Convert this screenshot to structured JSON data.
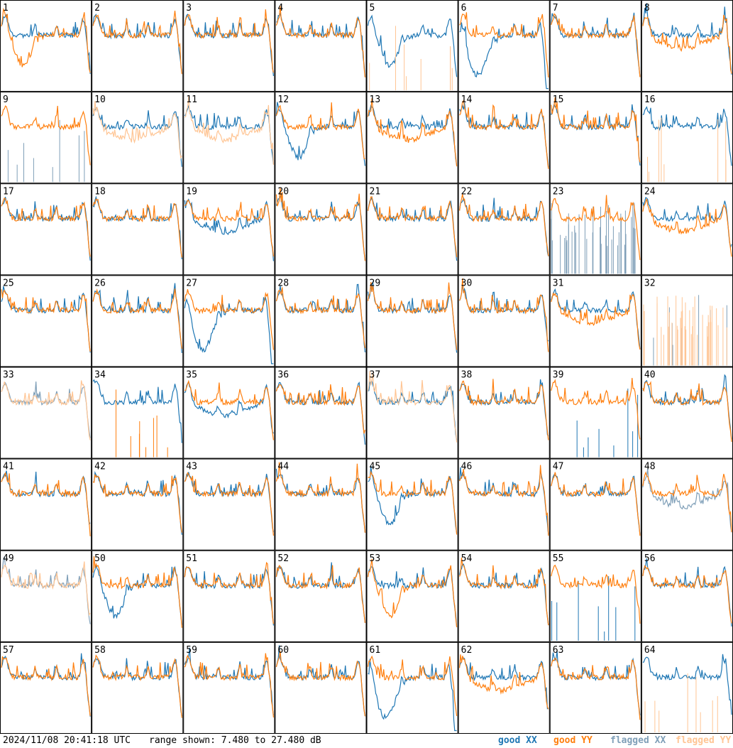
{
  "colors": {
    "good_xx": "#1f77b4",
    "good_yy": "#ff7f0e",
    "flagged_xx": "#7f9fb8",
    "flagged_yy": "#ffc594",
    "frame": "#000000"
  },
  "footer": {
    "timestamp": "2024/11/08 20:41:18 UTC",
    "range": "range shown: 7.480 to 27.480 dB",
    "legend_good_xx": "good XX",
    "legend_good_yy": "good YY",
    "legend_flagged_xx": "flagged XX",
    "legend_flagged_yy": "flagged YY"
  },
  "chart_data": {
    "type": "line",
    "grid": "8x8",
    "y_range_db": [
      7.48,
      27.48
    ],
    "series_types": [
      "good XX",
      "good YY",
      "flagged XX",
      "flagged YY"
    ],
    "tiles": [
      {
        "n": 1,
        "xx": "normal",
        "yy": "dip",
        "xx_flag": false,
        "yy_flag": false
      },
      {
        "n": 2,
        "xx": "normal",
        "yy": "normal",
        "xx_flag": false,
        "yy_flag": false
      },
      {
        "n": 3,
        "xx": "normal",
        "yy": "normal",
        "xx_flag": false,
        "yy_flag": false
      },
      {
        "n": 4,
        "xx": "normal",
        "yy": "normal",
        "xx_flag": false,
        "yy_flag": false
      },
      {
        "n": 5,
        "xx": "dip",
        "yy": "spikes",
        "xx_flag": false,
        "yy_flag": true
      },
      {
        "n": 6,
        "xx": "deep",
        "yy": "normal",
        "xx_flag": false,
        "yy_flag": false
      },
      {
        "n": 7,
        "xx": "normal",
        "yy": "normal",
        "xx_flag": false,
        "yy_flag": false
      },
      {
        "n": 8,
        "xx": "normal",
        "yy": "sag",
        "xx_flag": false,
        "yy_flag": false
      },
      {
        "n": 9,
        "xx": "spikes",
        "yy": "normal",
        "xx_flag": true,
        "yy_flag": false
      },
      {
        "n": 10,
        "xx": "normal",
        "yy": "sag",
        "xx_flag": false,
        "yy_flag": true
      },
      {
        "n": 11,
        "xx": "normal",
        "yy": "sag",
        "xx_flag": false,
        "yy_flag": true
      },
      {
        "n": 12,
        "xx": "dip",
        "yy": "normal",
        "xx_flag": false,
        "yy_flag": false
      },
      {
        "n": 13,
        "xx": "normal",
        "yy": "sag",
        "xx_flag": false,
        "yy_flag": false
      },
      {
        "n": 14,
        "xx": "normal",
        "yy": "normal",
        "xx_flag": false,
        "yy_flag": false
      },
      {
        "n": 15,
        "xx": "normal",
        "yy": "normal",
        "xx_flag": false,
        "yy_flag": false
      },
      {
        "n": 16,
        "xx": "normal",
        "yy": "spikes",
        "xx_flag": false,
        "yy_flag": true
      },
      {
        "n": 17,
        "xx": "normal",
        "yy": "normal",
        "xx_flag": false,
        "yy_flag": false
      },
      {
        "n": 18,
        "xx": "normal",
        "yy": "normal",
        "xx_flag": false,
        "yy_flag": false
      },
      {
        "n": 19,
        "xx": "sag",
        "yy": "normal",
        "xx_flag": false,
        "yy_flag": false
      },
      {
        "n": 20,
        "xx": "normal",
        "yy": "normal",
        "xx_flag": false,
        "yy_flag": false
      },
      {
        "n": 21,
        "xx": "normal",
        "yy": "normal",
        "xx_flag": false,
        "yy_flag": false
      },
      {
        "n": 22,
        "xx": "normal",
        "yy": "normal",
        "xx_flag": false,
        "yy_flag": false
      },
      {
        "n": 23,
        "xx": "noise",
        "yy": "normal",
        "xx_flag": true,
        "yy_flag": false
      },
      {
        "n": 24,
        "xx": "normal",
        "yy": "sag",
        "xx_flag": false,
        "yy_flag": false
      },
      {
        "n": 25,
        "xx": "normal",
        "yy": "normal",
        "xx_flag": false,
        "yy_flag": false
      },
      {
        "n": 26,
        "xx": "normal",
        "yy": "normal",
        "xx_flag": false,
        "yy_flag": false
      },
      {
        "n": 27,
        "xx": "deep",
        "yy": "normal",
        "xx_flag": false,
        "yy_flag": false
      },
      {
        "n": 28,
        "xx": "normal",
        "yy": "normal",
        "xx_flag": false,
        "yy_flag": false
      },
      {
        "n": 29,
        "xx": "normal",
        "yy": "normal",
        "xx_flag": false,
        "yy_flag": false
      },
      {
        "n": 30,
        "xx": "normal",
        "yy": "normal",
        "xx_flag": false,
        "yy_flag": false
      },
      {
        "n": 31,
        "xx": "normal",
        "yy": "sag",
        "xx_flag": false,
        "yy_flag": false
      },
      {
        "n": 32,
        "xx": "spikes",
        "yy": "noise",
        "xx_flag": true,
        "yy_flag": true
      },
      {
        "n": 33,
        "xx": "normal",
        "yy": "normal",
        "xx_flag": true,
        "yy_flag": true
      },
      {
        "n": 34,
        "xx": "normal",
        "yy": "spikes",
        "xx_flag": false,
        "yy_flag": false
      },
      {
        "n": 35,
        "xx": "sag",
        "yy": "normal",
        "xx_flag": false,
        "yy_flag": false
      },
      {
        "n": 36,
        "xx": "normal",
        "yy": "normal",
        "xx_flag": false,
        "yy_flag": false
      },
      {
        "n": 37,
        "xx": "normal",
        "yy": "normal",
        "xx_flag": false,
        "yy_flag": true
      },
      {
        "n": 38,
        "xx": "normal",
        "yy": "normal",
        "xx_flag": false,
        "yy_flag": false
      },
      {
        "n": 39,
        "xx": "spikes",
        "yy": "normal",
        "xx_flag": false,
        "yy_flag": false
      },
      {
        "n": 40,
        "xx": "normal",
        "yy": "normal",
        "xx_flag": false,
        "yy_flag": false
      },
      {
        "n": 41,
        "xx": "normal",
        "yy": "normal",
        "xx_flag": false,
        "yy_flag": false
      },
      {
        "n": 42,
        "xx": "normal",
        "yy": "normal",
        "xx_flag": false,
        "yy_flag": false
      },
      {
        "n": 43,
        "xx": "normal",
        "yy": "normal",
        "xx_flag": false,
        "yy_flag": false
      },
      {
        "n": 44,
        "xx": "normal",
        "yy": "normal",
        "xx_flag": false,
        "yy_flag": false
      },
      {
        "n": 45,
        "xx": "dip",
        "yy": "normal",
        "xx_flag": false,
        "yy_flag": false
      },
      {
        "n": 46,
        "xx": "normal",
        "yy": "normal",
        "xx_flag": false,
        "yy_flag": false
      },
      {
        "n": 47,
        "xx": "normal",
        "yy": "normal",
        "xx_flag": false,
        "yy_flag": false
      },
      {
        "n": 48,
        "xx": "sag",
        "yy": "normal",
        "xx_flag": true,
        "yy_flag": false
      },
      {
        "n": 49,
        "xx": "normal",
        "yy": "normal",
        "xx_flag": true,
        "yy_flag": true
      },
      {
        "n": 50,
        "xx": "dip",
        "yy": "normal",
        "xx_flag": false,
        "yy_flag": false
      },
      {
        "n": 51,
        "xx": "normal",
        "yy": "normal",
        "xx_flag": false,
        "yy_flag": false
      },
      {
        "n": 52,
        "xx": "normal",
        "yy": "normal",
        "xx_flag": false,
        "yy_flag": false
      },
      {
        "n": 53,
        "xx": "normal",
        "yy": "dip",
        "xx_flag": false,
        "yy_flag": false
      },
      {
        "n": 54,
        "xx": "normal",
        "yy": "normal",
        "xx_flag": false,
        "yy_flag": false
      },
      {
        "n": 55,
        "xx": "spikes",
        "yy": "normal",
        "xx_flag": false,
        "yy_flag": false
      },
      {
        "n": 56,
        "xx": "normal",
        "yy": "normal",
        "xx_flag": false,
        "yy_flag": false
      },
      {
        "n": 57,
        "xx": "normal",
        "yy": "normal",
        "xx_flag": false,
        "yy_flag": false
      },
      {
        "n": 58,
        "xx": "normal",
        "yy": "normal",
        "xx_flag": false,
        "yy_flag": false
      },
      {
        "n": 59,
        "xx": "normal",
        "yy": "normal",
        "xx_flag": false,
        "yy_flag": false
      },
      {
        "n": 60,
        "xx": "normal",
        "yy": "normal",
        "xx_flag": false,
        "yy_flag": false
      },
      {
        "n": 61,
        "xx": "deep",
        "yy": "normal",
        "xx_flag": false,
        "yy_flag": false
      },
      {
        "n": 62,
        "xx": "normal",
        "yy": "sag",
        "xx_flag": false,
        "yy_flag": false
      },
      {
        "n": 63,
        "xx": "normal",
        "yy": "normal",
        "xx_flag": false,
        "yy_flag": false
      },
      {
        "n": 64,
        "xx": "normal",
        "yy": "spikes",
        "xx_flag": false,
        "yy_flag": true
      }
    ]
  }
}
